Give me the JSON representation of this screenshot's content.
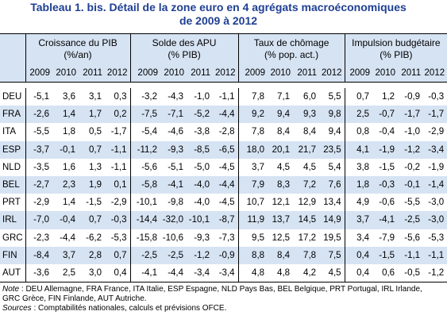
{
  "title_line1": "Tableau 1. bis. Détail de la zone euro en 4 agrégats macroéconomiques",
  "title_line2": "de 2009 à 2012",
  "groups": [
    {
      "line1": "Croissance du PIB",
      "line2": "(%/an)"
    },
    {
      "line1": "Solde des APU",
      "line2": "(% PIB)"
    },
    {
      "line1": "Taux de chômage",
      "line2": "(% pop. act.)"
    },
    {
      "line1": "Impulsion budgétaire",
      "line2": "(%  PIB)"
    }
  ],
  "years": [
    "2009",
    "2010",
    "2011",
    "2012"
  ],
  "rows": [
    {
      "country": "DEU",
      "values": [
        "-5,1",
        "3,6",
        "3,1",
        "0,3",
        "-3,2",
        "-4,3",
        "-1,0",
        "-1,1",
        "7,8",
        "7,1",
        "6,0",
        "5,5",
        "0,7",
        "1,2",
        "-0,9",
        "-0,3"
      ]
    },
    {
      "country": "FRA",
      "values": [
        "-2,6",
        "1,4",
        "1,7",
        "0,2",
        "-7,5",
        "-7,1",
        "-5,2",
        "-4,4",
        "9,2",
        "9,4",
        "9,3",
        "9,8",
        "2,5",
        "-0,7",
        "-1,7",
        "-1,7"
      ]
    },
    {
      "country": "ITA",
      "values": [
        "-5,5",
        "1,8",
        "0,5",
        "-1,7",
        "-5,4",
        "-4,6",
        "-3,8",
        "-2,8",
        "7,8",
        "8,4",
        "8,4",
        "9,4",
        "0,8",
        "-0,4",
        "-1,0",
        "-2,9"
      ]
    },
    {
      "country": "ESP",
      "values": [
        "-3,7",
        "-0,1",
        "0,7",
        "-1,1",
        "-11,2",
        "-9,3",
        "-8,5",
        "-6,5",
        "18,0",
        "20,1",
        "21,7",
        "23,5",
        "4,1",
        "-1,9",
        "-1,2",
        "-3,4"
      ]
    },
    {
      "country": "NLD",
      "values": [
        "-3,5",
        "1,6",
        "1,3",
        "-1,1",
        "-5,6",
        "-5,1",
        "-5,0",
        "-4,5",
        "3,7",
        "4,5",
        "4,5",
        "5,4",
        "3,8",
        "-1,5",
        "-0,2",
        "-1,9"
      ]
    },
    {
      "country": "BEL",
      "values": [
        "-2,7",
        "2,3",
        "1,9",
        "0,1",
        "-5,8",
        "-4,1",
        "-4,0",
        "-4,4",
        "7,9",
        "8,3",
        "7,2",
        "7,6",
        "1,8",
        "-0,3",
        "-0,1",
        "-1,4"
      ]
    },
    {
      "country": "PRT",
      "values": [
        "-2,9",
        "1,4",
        "-1,5",
        "-2,9",
        "-10,1",
        "-9,8",
        "-4,0",
        "-4,5",
        "10,7",
        "12,1",
        "12,9",
        "13,4",
        "4,9",
        "-0,6",
        "-5,5",
        "-3,0"
      ]
    },
    {
      "country": "IRL",
      "values": [
        "-7,0",
        "-0,4",
        "0,7",
        "-0,3",
        "-14,4",
        "-32,0",
        "-10,1",
        "-8,7",
        "11,9",
        "13,7",
        "14,5",
        "14,9",
        "3,7",
        "-4,1",
        "-2,5",
        "-3,0"
      ]
    },
    {
      "country": "GRC",
      "values": [
        "-2,3",
        "-4,4",
        "-6,2",
        "-5,3",
        "-15,8",
        "-10,6",
        "-9,3",
        "-7,3",
        "9,5",
        "12,5",
        "17,2",
        "19,5",
        "3,4",
        "-7,9",
        "-5,6",
        "-5,3"
      ]
    },
    {
      "country": "FIN",
      "values": [
        "-8,4",
        "3,7",
        "2,8",
        "0,7",
        "-2,5",
        "-2,5",
        "-1,2",
        "-0,9",
        "8,8",
        "8,4",
        "7,8",
        "7,5",
        "0,4",
        "-1,5",
        "-1,1",
        "-1,1"
      ]
    },
    {
      "country": "AUT",
      "values": [
        "-3,6",
        "2,5",
        "3,0",
        "0,4",
        "-4,1",
        "-4,4",
        "-3,4",
        "-3,4",
        "4,8",
        "4,8",
        "4,2",
        "4,5",
        "0,4",
        "0,6",
        "-0,5",
        "-1,2"
      ]
    }
  ],
  "note_label": "Note",
  "note_text": " : DEU Allemagne, FRA France, ITA Italie, ESP Espagne, NLD Pays Bas, BEL Belgique, PRT Portugal, IRL Irlande, GRC Grèce, FIN Finlande, AUT Autriche.",
  "sources_label": "Sources",
  "sources_text": " : Comptabilités nationales, calculs et prévisions OFCE."
}
